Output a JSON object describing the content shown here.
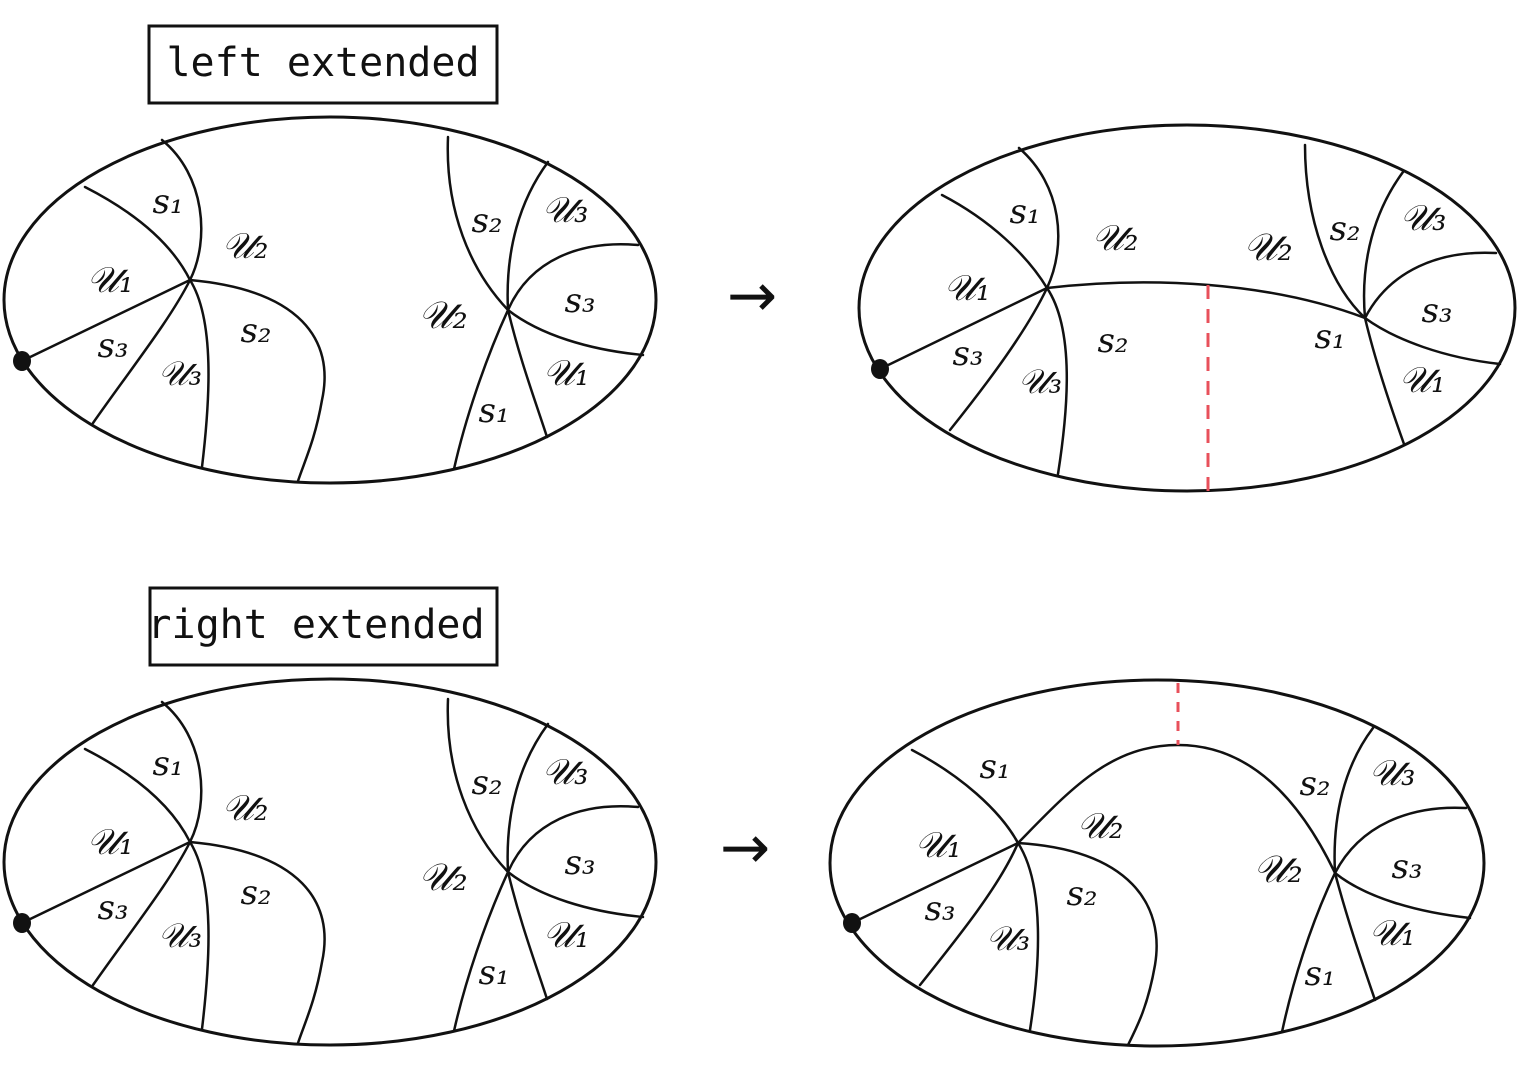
{
  "colors": {
    "ink": "#111111",
    "dashed_cut": "#e8505b",
    "background": "#ffffff"
  },
  "titles": {
    "top": "left extended",
    "bottom": "right extended"
  },
  "labels": {
    "s1": "s₁",
    "s2": "s₂",
    "s3": "s₃",
    "u1": "𝒰₁",
    "u2": "𝒰₂",
    "u3": "𝒰₃"
  },
  "arrows": [
    "→",
    "→"
  ],
  "diagrams": [
    {
      "id": "top-left",
      "row": "top",
      "stage": "before",
      "basepoint": true,
      "dashed_cut": false
    },
    {
      "id": "top-right",
      "row": "top",
      "stage": "after",
      "basepoint": true,
      "dashed_cut": true
    },
    {
      "id": "bottom-left",
      "row": "bottom",
      "stage": "before",
      "basepoint": true,
      "dashed_cut": false
    },
    {
      "id": "bottom-right",
      "row": "bottom",
      "stage": "after",
      "basepoint": true,
      "dashed_cut": true
    }
  ]
}
